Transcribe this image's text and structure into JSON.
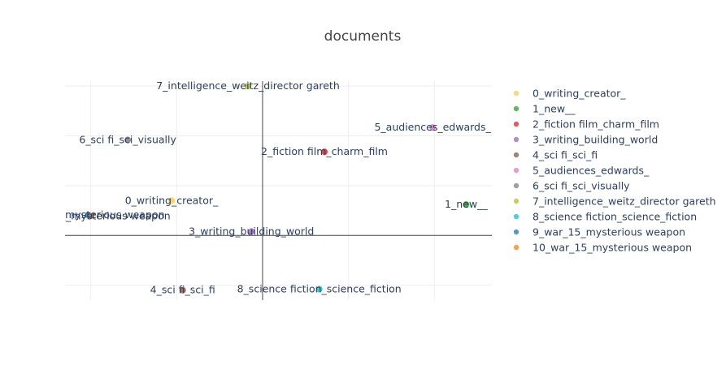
{
  "chart_data": {
    "type": "scatter",
    "title": "documents",
    "xlabel": "",
    "ylabel": "",
    "xlim": [
      -2.3,
      2.67
    ],
    "ylim": [
      -1.3,
      3.1
    ],
    "grid": true,
    "legend_position": "right",
    "series": [
      {
        "name": "0_writing_creator_",
        "color": "#FECB52",
        "points": [
          {
            "x": -1.06,
            "y": 0.7,
            "label": "0_writing_creator_"
          }
        ]
      },
      {
        "name": "1_new__",
        "color": "#2CA02C",
        "points": [
          {
            "x": 2.37,
            "y": 0.62,
            "label": "1_new__"
          }
        ]
      },
      {
        "name": "2_fiction film_charm_film",
        "color": "#D62728",
        "points": [
          {
            "x": 0.72,
            "y": 1.68,
            "label": "2_fiction film_charm_film"
          }
        ]
      },
      {
        "name": "3_writing_building_world",
        "color": "#9467BD",
        "points": [
          {
            "x": -0.13,
            "y": 0.08,
            "label": "3_writing_building_world"
          }
        ]
      },
      {
        "name": "4_sci fi_sci_fi",
        "color": "#8C564B",
        "points": [
          {
            "x": -0.93,
            "y": -1.1,
            "label": "4_sci fi_sci_fi"
          }
        ]
      },
      {
        "name": "5_audiences_edwards_",
        "color": "#E377C2",
        "points": [
          {
            "x": 1.98,
            "y": 2.17,
            "label": "5_audiences_edwards_"
          }
        ]
      },
      {
        "name": "6_sci fi_sci_visually",
        "color": "#7F7F7F",
        "points": [
          {
            "x": -1.57,
            "y": 1.92,
            "label": "6_sci fi_sci_visually"
          }
        ]
      },
      {
        "name": "7_intelligence_weitz_director gareth",
        "color": "#BCBD22",
        "points": [
          {
            "x": -0.17,
            "y": 3.0,
            "label": "7_intelligence_weitz_director gareth"
          }
        ]
      },
      {
        "name": "8_science fiction_science_fiction",
        "color": "#17BECF",
        "points": [
          {
            "x": 0.66,
            "y": -1.08,
            "label": "8_science fiction_science_fiction"
          }
        ]
      },
      {
        "name": "9_war_15_mysterious weapon",
        "color": "#1F77B4",
        "points": [
          {
            "x": -2.03,
            "y": 0.41,
            "label": "9_war_15_mysterious weapon"
          }
        ]
      },
      {
        "name": "10_war_15_mysterious weapon",
        "color": "#FF7F0E",
        "points": [
          {
            "x": -2.0,
            "y": 0.39,
            "label": "10_war_15_mysterious weapon"
          }
        ]
      }
    ]
  }
}
